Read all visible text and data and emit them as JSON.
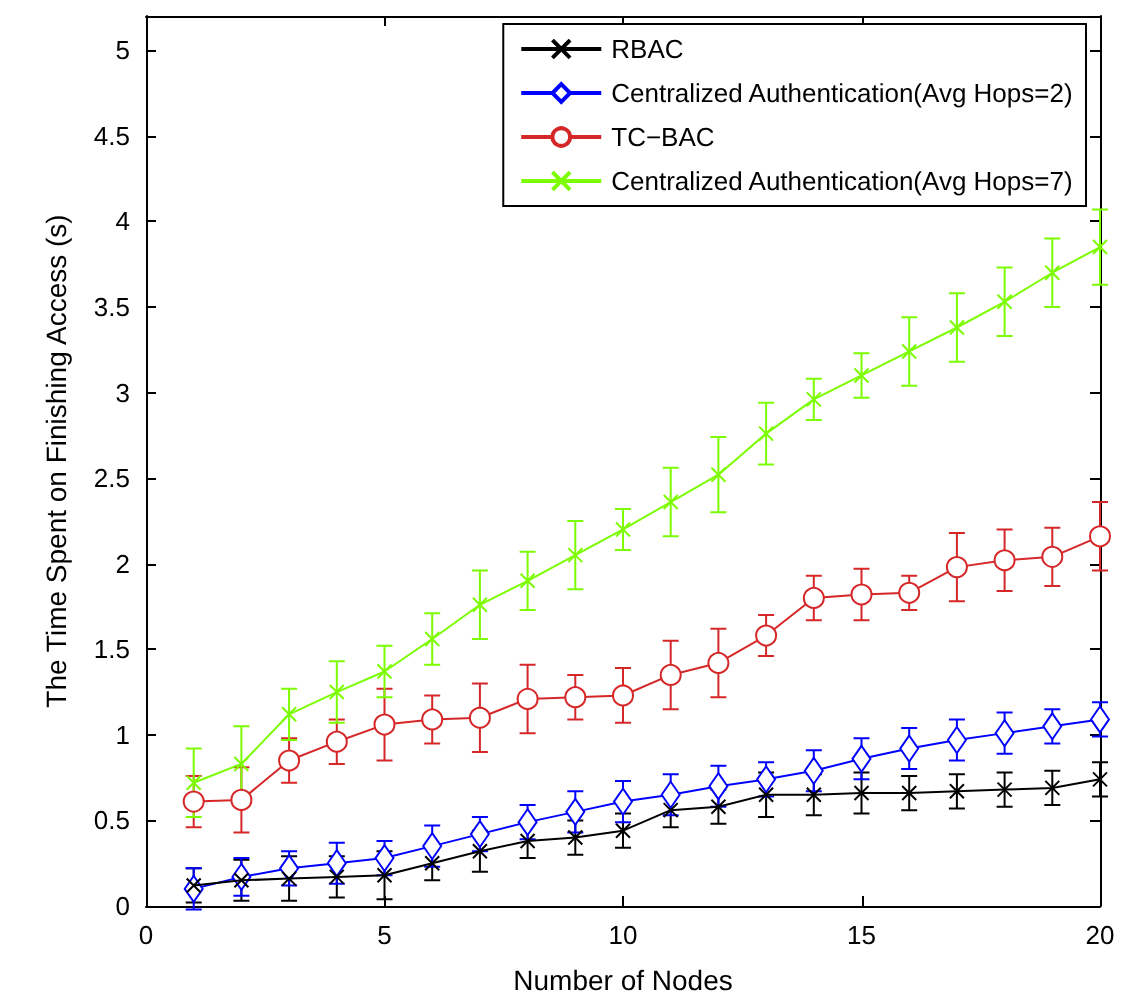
{
  "chart_data": {
    "type": "line",
    "xlabel": "Number of Nodes",
    "ylabel": "The Time Spent on Finishing Access (s)",
    "x": [
      1,
      2,
      3,
      4,
      5,
      6,
      7,
      8,
      9,
      10,
      11,
      12,
      13,
      14,
      15,
      16,
      17,
      18,
      19,
      20
    ],
    "xlim": [
      0,
      20
    ],
    "xticks": [
      0,
      5,
      10,
      15,
      20
    ],
    "ylim": [
      0,
      5.2
    ],
    "yticks": [
      0,
      0.5,
      1,
      1.5,
      2,
      2.5,
      3,
      3.5,
      4,
      4.5,
      5
    ],
    "grid": false,
    "legend": "top right",
    "line_style": "solid",
    "series": [
      {
        "name": "RBAC",
        "color": "#000000",
        "marker": "cross",
        "values": [
          0.12,
          0.15,
          0.16,
          0.17,
          0.18,
          0.25,
          0.32,
          0.38,
          0.4,
          0.44,
          0.56,
          0.58,
          0.65,
          0.65,
          0.66,
          0.66,
          0.67,
          0.68,
          0.69,
          0.74
        ],
        "errors": [
          0.1,
          0.12,
          0.13,
          0.12,
          0.14,
          0.1,
          0.12,
          0.1,
          0.1,
          0.1,
          0.1,
          0.1,
          0.13,
          0.12,
          0.12,
          0.1,
          0.1,
          0.1,
          0.1,
          0.1
        ]
      },
      {
        "name": "Centralized Authentication(Avg Hops=2)",
        "color": "#0000ff",
        "marker": "diamond",
        "values": [
          0.1,
          0.17,
          0.22,
          0.25,
          0.28,
          0.35,
          0.42,
          0.49,
          0.55,
          0.61,
          0.65,
          0.7,
          0.74,
          0.79,
          0.86,
          0.92,
          0.97,
          1.01,
          1.05,
          1.09
        ],
        "errors": [
          0.12,
          0.11,
          0.1,
          0.12,
          0.1,
          0.12,
          0.1,
          0.1,
          0.12,
          0.12,
          0.12,
          0.12,
          0.1,
          0.12,
          0.12,
          0.12,
          0.12,
          0.12,
          0.1,
          0.1
        ]
      },
      {
        "name": "TC−BAC",
        "color": "#d62728",
        "marker": "circle",
        "values": [
          0.61,
          0.62,
          0.85,
          0.96,
          1.06,
          1.09,
          1.1,
          1.21,
          1.22,
          1.23,
          1.35,
          1.42,
          1.58,
          1.8,
          1.82,
          1.83,
          1.98,
          2.02,
          2.04,
          2.16
        ],
        "errors": [
          0.15,
          0.19,
          0.13,
          0.13,
          0.21,
          0.14,
          0.2,
          0.2,
          0.13,
          0.16,
          0.2,
          0.2,
          0.12,
          0.13,
          0.15,
          0.1,
          0.2,
          0.18,
          0.17,
          0.2
        ]
      },
      {
        "name": "Centralized Authentication(Avg Hops=7)",
        "color": "#7cfc00",
        "marker": "cross",
        "values": [
          0.72,
          0.83,
          1.12,
          1.25,
          1.37,
          1.56,
          1.76,
          1.9,
          2.05,
          2.2,
          2.36,
          2.52,
          2.76,
          2.96,
          3.1,
          3.24,
          3.38,
          3.53,
          3.7,
          3.85
        ],
        "errors": [
          0.2,
          0.22,
          0.15,
          0.18,
          0.15,
          0.15,
          0.2,
          0.17,
          0.2,
          0.12,
          0.2,
          0.22,
          0.18,
          0.12,
          0.13,
          0.2,
          0.2,
          0.2,
          0.2,
          0.22
        ]
      }
    ]
  }
}
